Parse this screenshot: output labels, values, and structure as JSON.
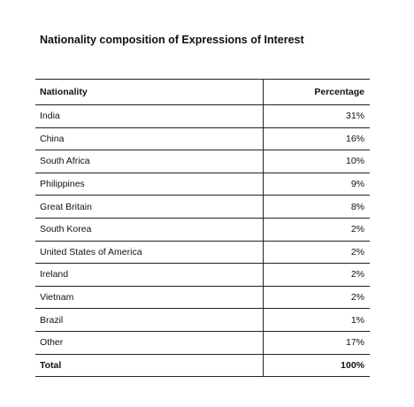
{
  "title": "Nationality composition of Expressions of Interest",
  "table": {
    "headers": {
      "nationality": "Nationality",
      "percentage": "Percentage"
    },
    "rows": [
      {
        "nationality": "India",
        "percentage": "31%"
      },
      {
        "nationality": "China",
        "percentage": "16%"
      },
      {
        "nationality": "South Africa",
        "percentage": "10%"
      },
      {
        "nationality": "Philippines",
        "percentage": "9%"
      },
      {
        "nationality": "Great Britain",
        "percentage": "8%"
      },
      {
        "nationality": "South Korea",
        "percentage": "2%"
      },
      {
        "nationality": "United States of America",
        "percentage": "2%"
      },
      {
        "nationality": "Ireland",
        "percentage": "2%"
      },
      {
        "nationality": "Vietnam",
        "percentage": "2%"
      },
      {
        "nationality": "Brazil",
        "percentage": "1%"
      },
      {
        "nationality": "Other",
        "percentage": "17%"
      }
    ],
    "total": {
      "label": "Total",
      "value": "100%"
    }
  }
}
